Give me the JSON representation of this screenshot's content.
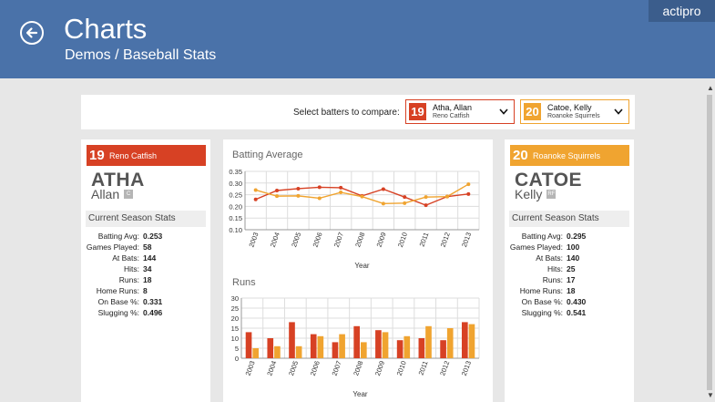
{
  "header": {
    "title": "Charts",
    "breadcrumb": "Demos / Baseball Stats",
    "brand": "actipro"
  },
  "selector": {
    "label": "Select batters to compare:",
    "batter1": {
      "number": "19",
      "name": "Atha, Allan",
      "team": "Reno Catfish"
    },
    "batter2": {
      "number": "20",
      "name": "Catoe, Kelly",
      "team": "Roanoke Squirrels"
    }
  },
  "colors": {
    "batter1": "#d74124",
    "batter2": "#f0a430",
    "header": "#4a72a9"
  },
  "icons": {
    "back": "arrow-left-circle-icon",
    "dropdown": "chevron-down-icon"
  },
  "players": {
    "left": {
      "number": "19",
      "team": "Reno Catfish",
      "last": "ATHA",
      "first": "Allan",
      "position": "C",
      "section_title": "Current Season Stats",
      "stats": [
        {
          "label": "Batting Avg:",
          "value": "0.253"
        },
        {
          "label": "Games Played:",
          "value": "58"
        },
        {
          "label": "At Bats:",
          "value": "144"
        },
        {
          "label": "Hits:",
          "value": "34"
        },
        {
          "label": "Runs:",
          "value": "18"
        },
        {
          "label": "Home Runs:",
          "value": "8"
        },
        {
          "label": "On Base %:",
          "value": "0.331"
        },
        {
          "label": "Slugging %:",
          "value": "0.496"
        }
      ]
    },
    "right": {
      "number": "20",
      "team": "Roanoke Squirrels",
      "last": "CATOE",
      "first": "Kelly",
      "position": "RF",
      "section_title": "Current Season Stats",
      "stats": [
        {
          "label": "Batting Avg:",
          "value": "0.295"
        },
        {
          "label": "Games Played:",
          "value": "100"
        },
        {
          "label": "At Bats:",
          "value": "140"
        },
        {
          "label": "Hits:",
          "value": "25"
        },
        {
          "label": "Runs:",
          "value": "17"
        },
        {
          "label": "Home Runs:",
          "value": "18"
        },
        {
          "label": "On Base %:",
          "value": "0.430"
        },
        {
          "label": "Slugging %:",
          "value": "0.541"
        }
      ]
    }
  },
  "chart_data": [
    {
      "type": "line",
      "title": "Batting Average",
      "xlabel": "Year",
      "ylabel": "",
      "ylim": [
        0.1,
        0.35
      ],
      "yticks": [
        "0.35",
        "0.30",
        "0.25",
        "0.20",
        "0.15",
        "0.10"
      ],
      "grid": true,
      "categories": [
        "2003",
        "2004",
        "2005",
        "2006",
        "2007",
        "2008",
        "2009",
        "2010",
        "2011",
        "2012",
        "2013"
      ],
      "series": [
        {
          "values": [
            0.23,
            0.268,
            0.276,
            0.282,
            0.28,
            0.245,
            0.274,
            0.24,
            0.205,
            0.242,
            0.253
          ]
        },
        {
          "values": [
            0.27,
            0.244,
            0.245,
            0.235,
            0.26,
            0.242,
            0.212,
            0.214,
            0.24,
            0.242,
            0.295
          ]
        }
      ]
    },
    {
      "type": "bar",
      "title": "Runs",
      "xlabel": "Year",
      "ylabel": "",
      "ylim": [
        0,
        30
      ],
      "yticks": [
        "30",
        "25",
        "20",
        "15",
        "10",
        "5",
        "0"
      ],
      "grid": true,
      "categories": [
        "2003",
        "2004",
        "2005",
        "2006",
        "2007",
        "2008",
        "2009",
        "2010",
        "2011",
        "2012",
        "2013"
      ],
      "series": [
        {
          "values": [
            13,
            10,
            18,
            12,
            8,
            16,
            14,
            9,
            10,
            9,
            18
          ]
        },
        {
          "values": [
            5,
            6,
            6,
            11,
            12,
            8,
            13,
            11,
            16,
            15,
            17
          ]
        }
      ]
    }
  ]
}
